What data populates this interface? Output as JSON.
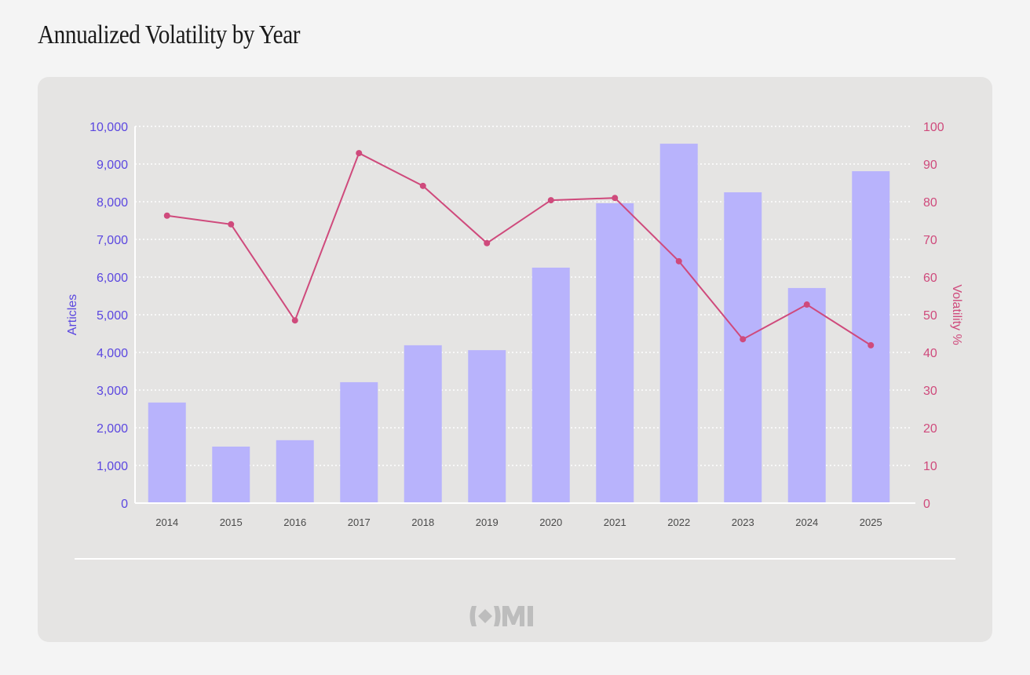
{
  "page": {
    "title": "Annualized Volatility by Year"
  },
  "logo": {
    "text": "OMI",
    "icon": "diamond-brackets-logo-icon"
  },
  "colors": {
    "bar": "#b8b3fc",
    "line": "#cf4a7c",
    "left_axis": "#5b47e0",
    "right_axis": "#cf4a7c",
    "grid": "#ffffff"
  },
  "chart_data": {
    "type": "bar+line",
    "title": "Annualized Volatility by Year",
    "categories": [
      "2014",
      "2015",
      "2016",
      "2017",
      "2018",
      "2019",
      "2020",
      "2021",
      "2022",
      "2023",
      "2024",
      "2025"
    ],
    "series": [
      {
        "name": "Articles",
        "type": "bar",
        "axis": "left",
        "values": [
          2670,
          1500,
          1670,
          3210,
          4190,
          4060,
          6250,
          7960,
          9540,
          8250,
          5710,
          8810
        ]
      },
      {
        "name": "Volatility %",
        "type": "line",
        "axis": "right",
        "values": [
          76.3,
          74.0,
          48.5,
          92.9,
          84.2,
          69.0,
          80.4,
          81.0,
          64.2,
          43.5,
          52.7,
          41.9
        ]
      }
    ],
    "ylabel": "Articles",
    "ylabel_right": "Volatility %",
    "xlabel": "",
    "ylim": [
      0,
      10000
    ],
    "ylim_right": [
      0,
      100
    ],
    "yticks": [
      "0",
      "1,000",
      "2,000",
      "3,000",
      "4,000",
      "5,000",
      "6,000",
      "7,000",
      "8,000",
      "9,000",
      "10,000"
    ],
    "yticks_right": [
      "0",
      "10",
      "20",
      "30",
      "40",
      "50",
      "60",
      "70",
      "80",
      "90",
      "100"
    ],
    "grid": true,
    "grid_style": "dotted-horizontal",
    "legend": "none"
  }
}
